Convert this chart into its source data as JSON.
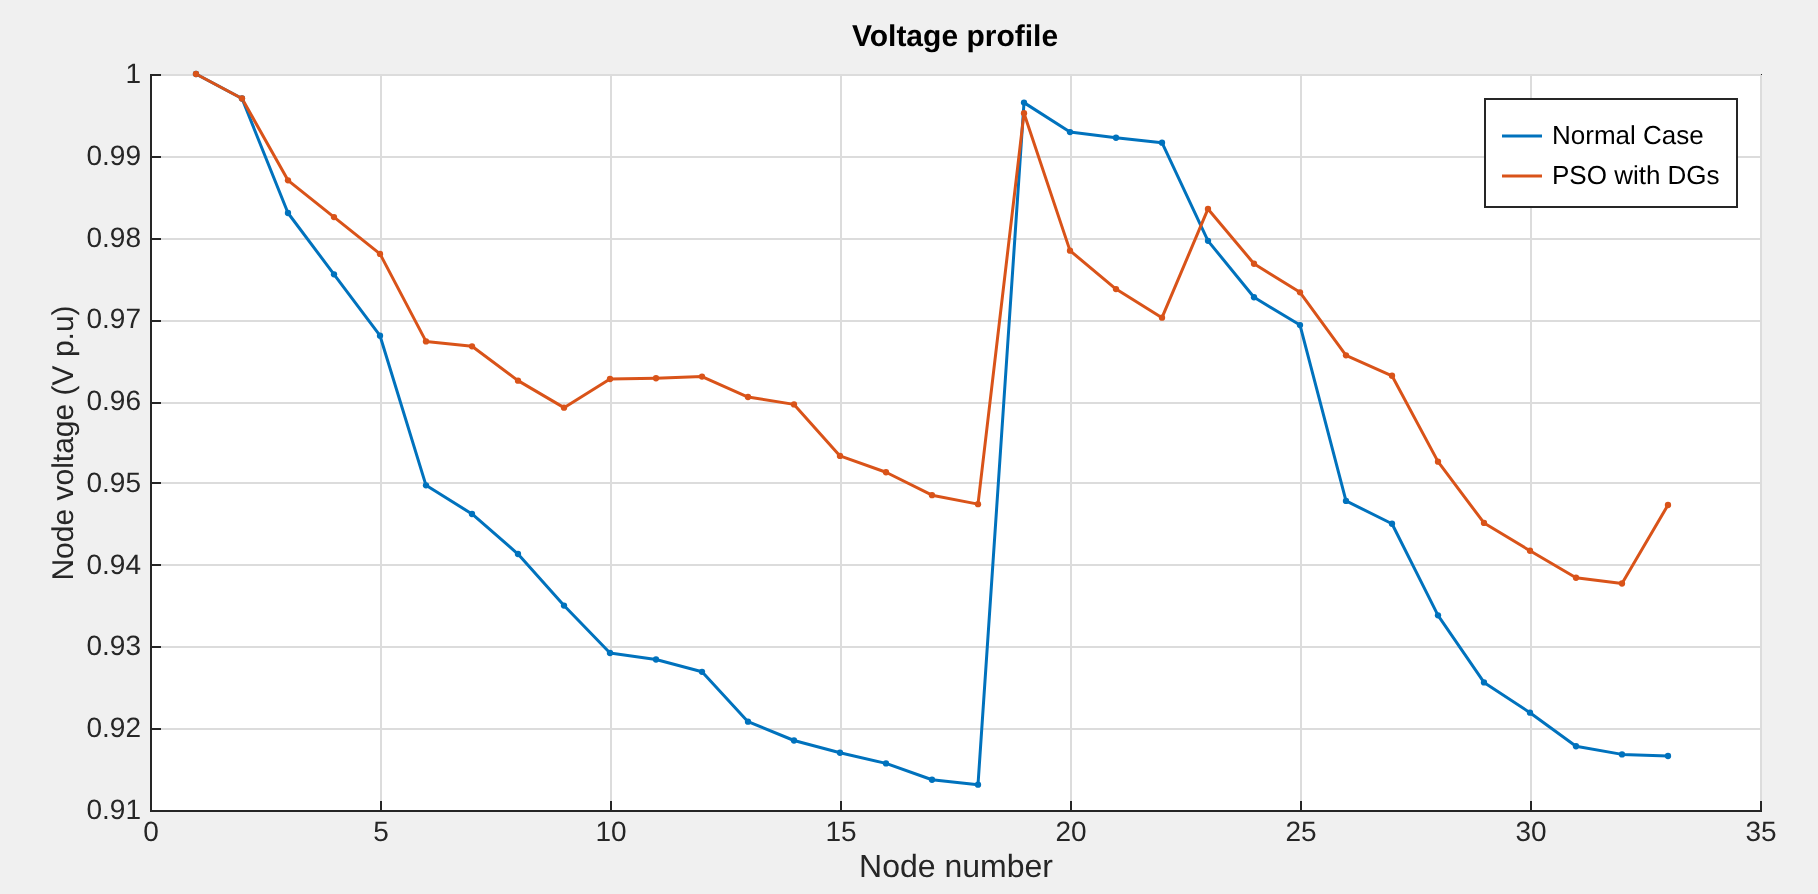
{
  "chart_data": {
    "type": "line",
    "title": "Voltage profile",
    "xlabel": "Node number",
    "ylabel": "Node voltage (V p.u)",
    "x": [
      1,
      2,
      3,
      4,
      5,
      6,
      7,
      8,
      9,
      10,
      11,
      12,
      13,
      14,
      15,
      16,
      17,
      18,
      19,
      20,
      21,
      22,
      23,
      24,
      25,
      26,
      27,
      28,
      29,
      30,
      31,
      32,
      33
    ],
    "series": [
      {
        "name": "Normal Case",
        "color": "#0072bd",
        "values": [
          1,
          0.997,
          0.983,
          0.9755,
          0.968,
          0.9497,
          0.9462,
          0.9413,
          0.935,
          0.9292,
          0.9284,
          0.9269,
          0.9208,
          0.9185,
          0.917,
          0.9157,
          0.9137,
          0.9131,
          0.9965,
          0.9929,
          0.9922,
          0.9916,
          0.9796,
          0.9727,
          0.9693,
          0.9478,
          0.945,
          0.9338,
          0.9256,
          0.9219,
          0.9178,
          0.9168,
          0.9166
        ]
      },
      {
        "name": "PSO with DGs",
        "color": "#d95319",
        "values": [
          1,
          0.997,
          0.987,
          0.9825,
          0.978,
          0.9673,
          0.9667,
          0.9625,
          0.9592,
          0.9627,
          0.9628,
          0.963,
          0.9605,
          0.9596,
          0.9533,
          0.9513,
          0.9485,
          0.9474,
          0.9952,
          0.9784,
          0.9737,
          0.9702,
          0.9835,
          0.9768,
          0.9733,
          0.9656,
          0.9631,
          0.9526,
          0.9451,
          0.9417,
          0.9384,
          0.9377,
          0.9473
        ]
      }
    ],
    "xlim": [
      0,
      35
    ],
    "xticks": [
      0,
      5,
      10,
      15,
      20,
      25,
      30,
      35
    ],
    "ylim": [
      0.91,
      1
    ],
    "yticks": [
      0.91,
      0.92,
      0.93,
      0.94,
      0.95,
      0.96,
      0.97,
      0.98,
      0.99,
      1
    ],
    "grid": true,
    "legend": "top right",
    "marker": "circle",
    "line_style": "solid"
  }
}
